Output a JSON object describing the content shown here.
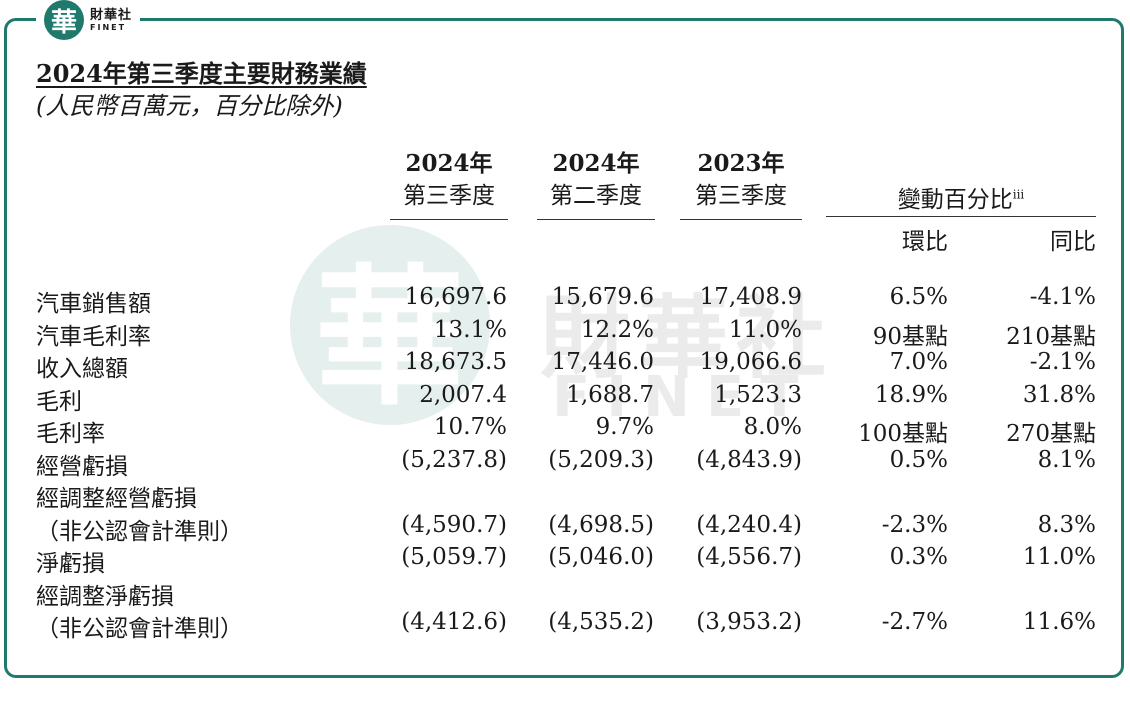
{
  "logo": {
    "glyph": "華",
    "name_cn": "財華社",
    "name_en": "FINET"
  },
  "watermark": {
    "glyph": "華",
    "cn": "財華社",
    "en": "FINET"
  },
  "title": "2024年第三季度主要財務業績",
  "subtitle": "(人民幣百萬元，百分比除外)",
  "columns": [
    {
      "year": "2024年",
      "quarter": "第三季度"
    },
    {
      "year": "2024年",
      "quarter": "第二季度"
    },
    {
      "year": "2023年",
      "quarter": "第三季度"
    }
  ],
  "change": {
    "label": "變動百分比",
    "note": "iii",
    "qoq": "環比",
    "yoy": "同比"
  },
  "rows": [
    {
      "label": "汽車銷售額",
      "values": [
        "16,697.6",
        "15,679.6",
        "17,408.9",
        "6.5%",
        "-4.1%"
      ]
    },
    {
      "label": "汽車毛利率",
      "values": [
        "13.1%",
        "12.2%",
        "11.0%",
        "90基點",
        "210基點"
      ]
    },
    {
      "label": "收入總額",
      "values": [
        "18,673.5",
        "17,446.0",
        "19,066.6",
        "7.0%",
        "-2.1%"
      ]
    },
    {
      "label": "毛利",
      "values": [
        "2,007.4",
        "1,688.7",
        "1,523.3",
        "18.9%",
        "31.8%"
      ]
    },
    {
      "label": "毛利率",
      "values": [
        "10.7%",
        "9.7%",
        "8.0%",
        "100基點",
        "270基點"
      ]
    },
    {
      "label": "經營虧損",
      "values": [
        "(5,237.8)",
        "(5,209.3)",
        "(4,843.9)",
        "0.5%",
        "8.1%"
      ]
    },
    {
      "label": "經調整經營虧損",
      "values": [
        "",
        "",
        "",
        "",
        ""
      ]
    },
    {
      "label": "（非公認會計準則）",
      "values": [
        "(4,590.7)",
        "(4,698.5)",
        "(4,240.4)",
        "-2.3%",
        "8.3%"
      ]
    },
    {
      "label": "淨虧損",
      "values": [
        "(5,059.7)",
        "(5,046.0)",
        "(4,556.7)",
        "0.3%",
        "11.0%"
      ]
    },
    {
      "label": "經調整淨虧損",
      "values": [
        "",
        "",
        "",
        "",
        ""
      ]
    },
    {
      "label": "（非公認會計準則）",
      "values": [
        "(4,412.6)",
        "(4,535.2)",
        "(3,953.2)",
        "-2.7%",
        "11.6%"
      ]
    }
  ]
}
